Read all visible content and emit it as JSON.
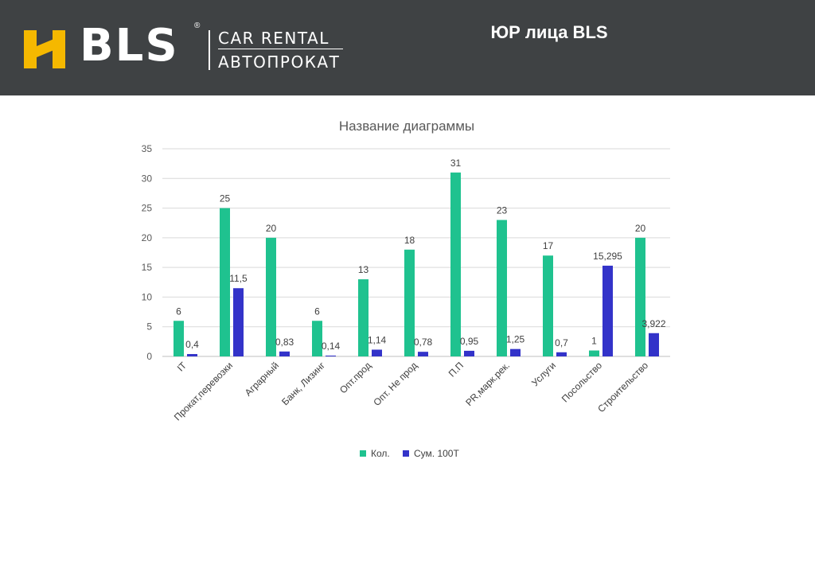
{
  "header": {
    "brand": "BLS",
    "registered_mark": "®",
    "tagline_en": "CAR RENTAL",
    "tagline_ru": "АВТОПРОКАТ",
    "slide_title": "ЮР лица BLS",
    "colors": {
      "background": "#3f4244",
      "logo_accent": "#f5b800",
      "text": "#ffffff"
    }
  },
  "chart_data": {
    "type": "bar",
    "title": "Название диаграммы",
    "xlabel": "",
    "ylabel": "",
    "ylim": [
      0,
      35
    ],
    "yticks": [
      "0",
      "5",
      "10",
      "15",
      "20",
      "25",
      "30",
      "35"
    ],
    "grid": true,
    "legend_position": "bottom",
    "categories": [
      "IT",
      "Прокат,перевозки",
      "Аграрный",
      "Банк, Лизинг",
      "Опт.прод",
      "Опт. Не прод",
      "П.П",
      "PR,марк.рек.",
      "Услуги",
      "Посольство",
      "Строительство"
    ],
    "series": [
      {
        "name": "Кол.",
        "color": "#1fc28f",
        "values": [
          6,
          25,
          20,
          6,
          13,
          18,
          31,
          23,
          17,
          1,
          20
        ],
        "labels": [
          "6",
          "25",
          "20",
          "6",
          "13",
          "18",
          "31",
          "23",
          "17",
          "1",
          "20"
        ]
      },
      {
        "name": "Сум. 100Т",
        "color": "#3333c9",
        "values": [
          0.4,
          11.5,
          0.83,
          0.14,
          1.14,
          0.78,
          0.95,
          1.25,
          0.7,
          15.295,
          3.922
        ],
        "labels": [
          "0,4",
          "11,5",
          "0,83",
          "0,14",
          "1,14",
          "0,78",
          "0,95",
          "1,25",
          "0,7",
          "15,295",
          "3,922"
        ]
      }
    ]
  }
}
